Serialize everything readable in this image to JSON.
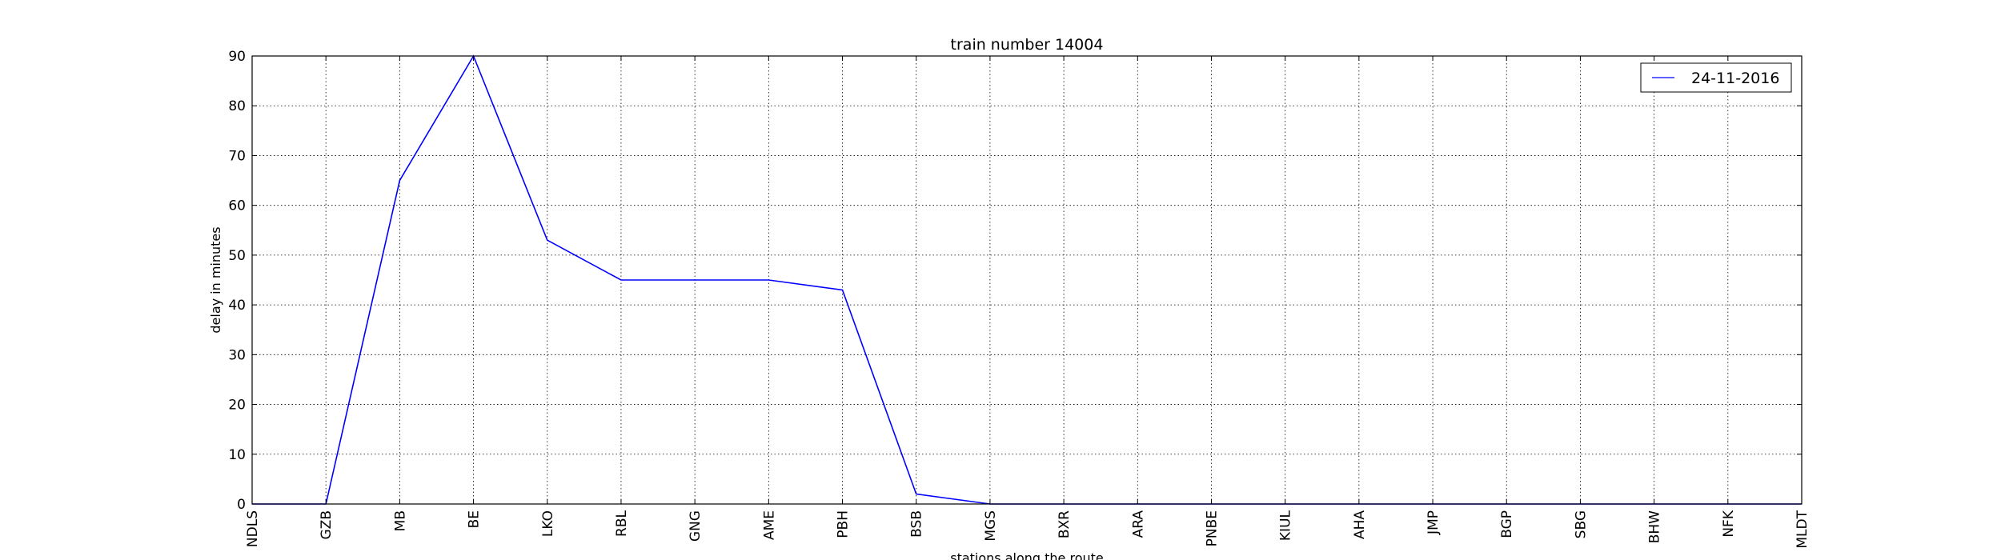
{
  "chart_data": {
    "type": "line",
    "title": "train number 14004",
    "xlabel": "stations along the route",
    "ylabel": "delay in minutes",
    "categories": [
      "NDLS",
      "GZB",
      "MB",
      "BE",
      "LKO",
      "RBL",
      "GNG",
      "AME",
      "PBH",
      "BSB",
      "MGS",
      "BXR",
      "ARA",
      "PNBE",
      "KIUL",
      "AHA",
      "JMP",
      "BGP",
      "SBG",
      "BHW",
      "NFK",
      "MLDT"
    ],
    "series": [
      {
        "name": "24-11-2016",
        "color": "#0000ff",
        "values": [
          0,
          0,
          65,
          90,
          53,
          45,
          45,
          45,
          43,
          2,
          0,
          0,
          0,
          0,
          0,
          0,
          0,
          0,
          0,
          0,
          0,
          0
        ]
      }
    ],
    "ylim": [
      0,
      90
    ],
    "yticks": [
      0,
      10,
      20,
      30,
      40,
      50,
      60,
      70,
      80,
      90
    ],
    "grid": true,
    "grid_style": "dotted",
    "legend_position": "top-right"
  }
}
